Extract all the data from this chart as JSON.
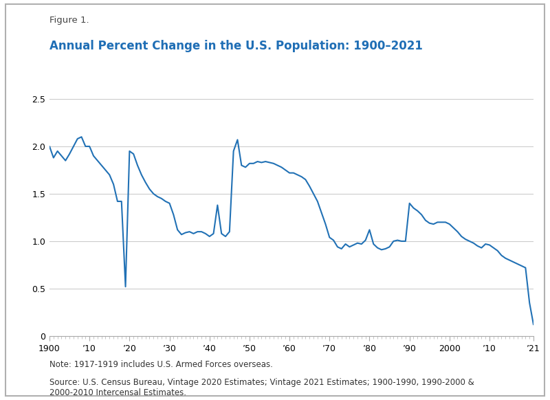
{
  "title_figure": "Figure 1.",
  "title_main": "Annual Percent Change in the U.S. Population: 1900–2021",
  "note": "Note: 1917-1919 includes U.S. Armed Forces overseas.",
  "source": "Source: U.S. Census Bureau, Vintage 2020 Estimates; Vintage 2021 Estimates; 1900-1990, 1990-2000 &\n2000-2010 Intercensal Estimates.",
  "line_color": "#2171b5",
  "background_color": "#ffffff",
  "border_color": "#b0b0b0",
  "ylim": [
    0,
    2.7
  ],
  "yticks": [
    0,
    0.5,
    1.0,
    1.5,
    2.0,
    2.5
  ],
  "xlim": [
    1900,
    2021
  ],
  "xtick_labels": [
    "1900",
    "’10",
    "’20",
    "’30",
    "’40",
    "’50",
    "’60",
    "’70",
    "’80",
    "’90",
    "2000",
    "’10",
    "’21"
  ],
  "xtick_positions": [
    1900,
    1910,
    1920,
    1930,
    1940,
    1950,
    1960,
    1970,
    1980,
    1990,
    2000,
    2010,
    2021
  ],
  "years": [
    1900,
    1901,
    1902,
    1903,
    1904,
    1905,
    1906,
    1907,
    1908,
    1909,
    1910,
    1911,
    1912,
    1913,
    1914,
    1915,
    1916,
    1917,
    1918,
    1919,
    1920,
    1921,
    1922,
    1923,
    1924,
    1925,
    1926,
    1927,
    1928,
    1929,
    1930,
    1931,
    1932,
    1933,
    1934,
    1935,
    1936,
    1937,
    1938,
    1939,
    1940,
    1941,
    1942,
    1943,
    1944,
    1945,
    1946,
    1947,
    1948,
    1949,
    1950,
    1951,
    1952,
    1953,
    1954,
    1955,
    1956,
    1957,
    1958,
    1959,
    1960,
    1961,
    1962,
    1963,
    1964,
    1965,
    1966,
    1967,
    1968,
    1969,
    1970,
    1971,
    1972,
    1973,
    1974,
    1975,
    1976,
    1977,
    1978,
    1979,
    1980,
    1981,
    1982,
    1983,
    1984,
    1985,
    1986,
    1987,
    1988,
    1989,
    1990,
    1991,
    1992,
    1993,
    1994,
    1995,
    1996,
    1997,
    1998,
    1999,
    2000,
    2001,
    2002,
    2003,
    2004,
    2005,
    2006,
    2007,
    2008,
    2009,
    2010,
    2011,
    2012,
    2013,
    2014,
    2015,
    2016,
    2017,
    2018,
    2019,
    2020,
    2021
  ],
  "values": [
    2.0,
    1.88,
    1.95,
    1.9,
    1.85,
    1.92,
    2.0,
    2.08,
    2.1,
    2.0,
    2.0,
    1.9,
    1.85,
    1.8,
    1.75,
    1.7,
    1.6,
    1.42,
    1.42,
    0.52,
    1.95,
    1.92,
    1.8,
    1.7,
    1.62,
    1.55,
    1.5,
    1.47,
    1.45,
    1.42,
    1.4,
    1.28,
    1.12,
    1.07,
    1.09,
    1.1,
    1.08,
    1.1,
    1.1,
    1.08,
    1.05,
    1.08,
    1.38,
    1.08,
    1.05,
    1.1,
    1.95,
    2.07,
    1.8,
    1.78,
    1.82,
    1.82,
    1.84,
    1.83,
    1.84,
    1.83,
    1.82,
    1.8,
    1.78,
    1.75,
    1.72,
    1.72,
    1.7,
    1.68,
    1.65,
    1.58,
    1.5,
    1.42,
    1.3,
    1.18,
    1.04,
    1.01,
    0.94,
    0.92,
    0.97,
    0.94,
    0.96,
    0.98,
    0.97,
    1.01,
    1.12,
    0.97,
    0.93,
    0.91,
    0.92,
    0.94,
    1.0,
    1.01,
    1.0,
    1.0,
    1.4,
    1.35,
    1.32,
    1.28,
    1.22,
    1.19,
    1.18,
    1.2,
    1.2,
    1.2,
    1.18,
    1.14,
    1.1,
    1.05,
    1.02,
    1.0,
    0.98,
    0.95,
    0.93,
    0.97,
    0.96,
    0.93,
    0.9,
    0.85,
    0.82,
    0.8,
    0.78,
    0.76,
    0.74,
    0.72,
    0.35,
    0.12
  ]
}
